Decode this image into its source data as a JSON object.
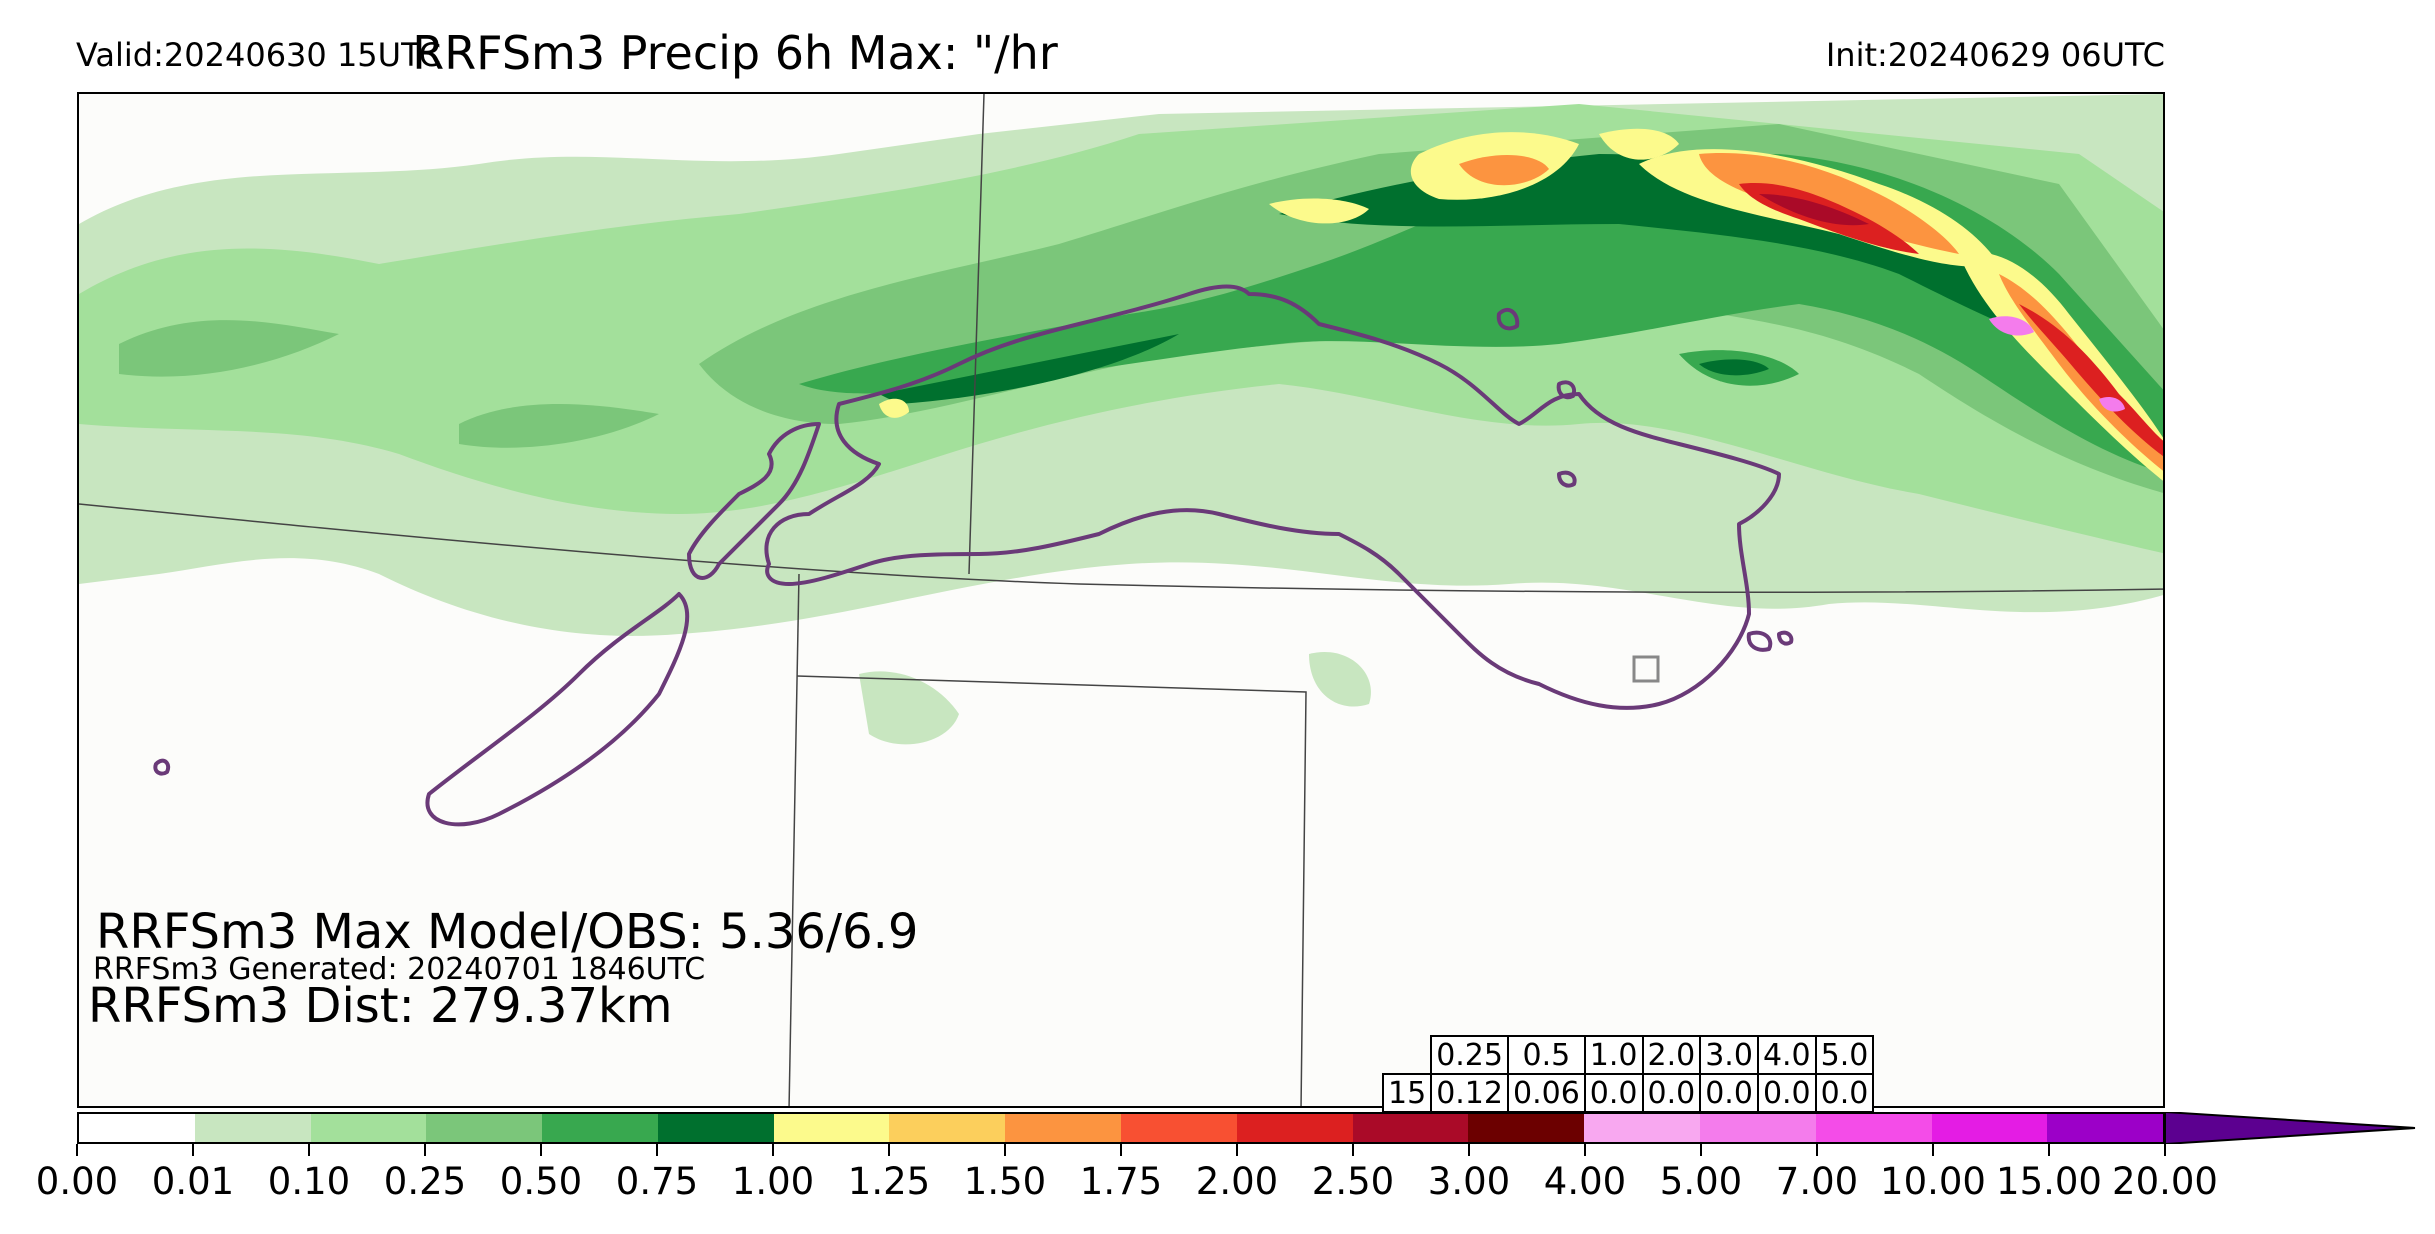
{
  "header": {
    "valid": "Valid:20240630 15UTC",
    "title": "RRFSm3 Precip 6h Max: \"/hr",
    "init": "Init:20240629 06UTC"
  },
  "annotations": {
    "max_model_obs": "RRFSm3 Max Model/OBS: 5.36/6.9",
    "generated": "RRFSm3 Generated: 20240701 1846UTC",
    "dist": "RRFSm3 Dist: 279.37km"
  },
  "stats_table": {
    "thresholds": [
      "0.25",
      "0.5",
      "1.0",
      "2.0",
      "3.0",
      "4.0",
      "5.0"
    ],
    "row_label": "15",
    "values": [
      "0.12",
      "0.06",
      "0.0",
      "0.0",
      "0.0",
      "0.0",
      "0.0"
    ]
  },
  "colorbar": {
    "labels": [
      "0.00",
      "0.01",
      "0.10",
      "0.25",
      "0.50",
      "0.75",
      "1.00",
      "1.25",
      "1.50",
      "1.75",
      "2.00",
      "2.50",
      "3.00",
      "4.00",
      "5.00",
      "7.00",
      "10.00",
      "15.00",
      "20.00"
    ],
    "colors": [
      "#ffffff",
      "#c8e6c0",
      "#a3e09b",
      "#7bc67a",
      "#38a84f",
      "#00702e",
      "#fcfa8c",
      "#fccf5c",
      "#fc9440",
      "#f85032",
      "#dc2020",
      "#aa0a28",
      "#6c0000",
      "#f8a8f0",
      "#f47cec",
      "#f44ce8",
      "#e41ce4",
      "#9c00c8"
    ],
    "arrow_color": "#5c0090"
  },
  "map_colors": {
    "light_green": "#c8e6c0",
    "green2": "#a3e09b",
    "green3": "#7bc67a",
    "green4": "#38a84f",
    "dark_green": "#00702e",
    "obs_contour": "#6a3a78"
  }
}
